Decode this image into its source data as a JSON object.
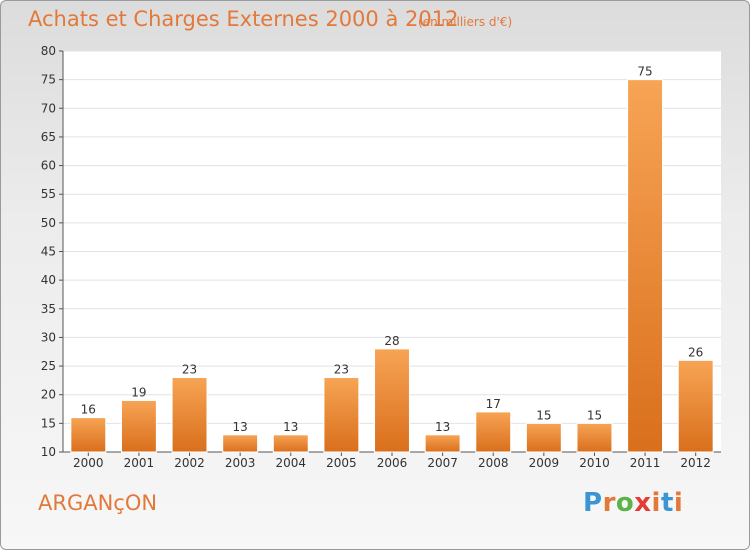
{
  "header": {
    "title": "Achats et Charges Externes 2000 à 2012",
    "unit": "(en milliers d'€)"
  },
  "footer": {
    "commune": "ARGANçON",
    "logo_text": "Proxiti"
  },
  "colors": {
    "bar_light": "#f7a455",
    "bar_dark": "#d96f1c",
    "title": "#e2793a",
    "logo": [
      "#3a95d3",
      "#e2793a",
      "#5ab447",
      "#e43c36",
      "#e2793a",
      "#3a95d3",
      "#e2793a"
    ]
  },
  "chart_data": {
    "type": "bar",
    "categories": [
      "2000",
      "2001",
      "2002",
      "2003",
      "2004",
      "2005",
      "2006",
      "2007",
      "2008",
      "2009",
      "2010",
      "2011",
      "2012"
    ],
    "values": [
      16,
      19,
      23,
      13,
      13,
      23,
      28,
      13,
      17,
      15,
      15,
      75,
      26
    ],
    "title": "Achats et Charges Externes 2000 à 2012",
    "xlabel": "",
    "ylabel": "",
    "ylim": [
      10,
      80
    ],
    "yticks": [
      10,
      15,
      20,
      25,
      30,
      35,
      40,
      45,
      50,
      55,
      60,
      65,
      70,
      75,
      80
    ],
    "grid": true,
    "legend": "none"
  }
}
